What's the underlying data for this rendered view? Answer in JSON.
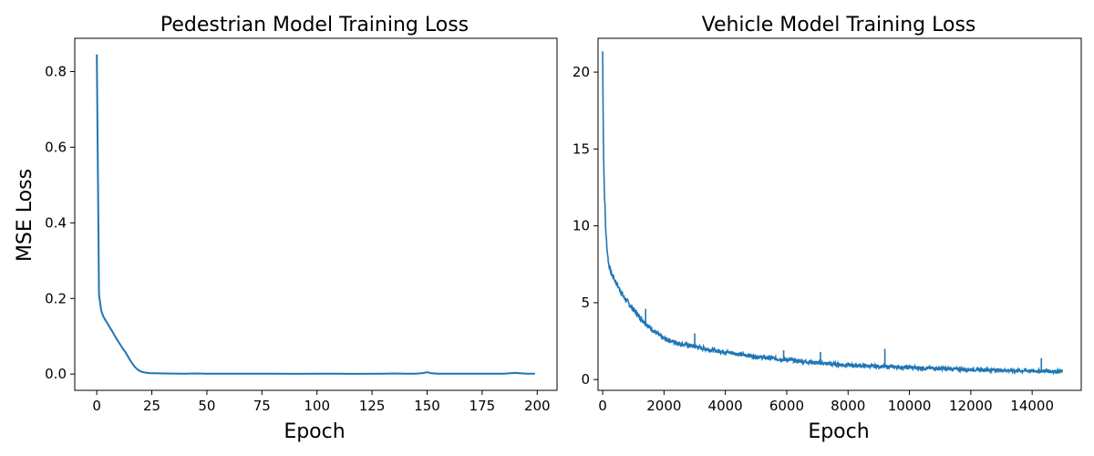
{
  "chart_data": [
    {
      "type": "line",
      "title": "Pedestrian Model Training Loss",
      "xlabel": "Epoch",
      "ylabel": "MSE Loss",
      "xlim": [
        -10,
        209
      ],
      "ylim": [
        -0.043,
        0.888
      ],
      "xticks": [
        0,
        25,
        50,
        75,
        100,
        125,
        150,
        175,
        200
      ],
      "xtick_labels": [
        "0",
        "25",
        "50",
        "75",
        "100",
        "125",
        "150",
        "175",
        "200"
      ],
      "yticks": [
        0.0,
        0.2,
        0.4,
        0.6,
        0.8
      ],
      "ytick_labels": [
        "0.0",
        "0.2",
        "0.4",
        "0.6",
        "0.8"
      ],
      "grid": false,
      "series": [
        {
          "color": "#1f77b4",
          "x": [
            0,
            1,
            2,
            3,
            4,
            5,
            6,
            7,
            8,
            9,
            10,
            11,
            12,
            13,
            14,
            15,
            16,
            17,
            18,
            19,
            20,
            21,
            22,
            23,
            24,
            25,
            27,
            30,
            35,
            40,
            45,
            50,
            60,
            70,
            80,
            90,
            100,
            110,
            120,
            130,
            135,
            140,
            145,
            148,
            150,
            152,
            155,
            160,
            170,
            180,
            185,
            190,
            195,
            199
          ],
          "y": [
            0.845,
            0.21,
            0.168,
            0.152,
            0.142,
            0.133,
            0.123,
            0.113,
            0.103,
            0.093,
            0.084,
            0.075,
            0.066,
            0.058,
            0.048,
            0.038,
            0.029,
            0.021,
            0.015,
            0.01,
            0.007,
            0.005,
            0.004,
            0.003,
            0.0025,
            0.002,
            0.002,
            0.0015,
            0.0013,
            0.0012,
            0.0015,
            0.001,
            0.001,
            0.0008,
            0.001,
            0.0007,
            0.001,
            0.0008,
            0.0007,
            0.0008,
            0.0015,
            0.0008,
            0.0009,
            0.0025,
            0.005,
            0.002,
            0.001,
            0.0012,
            0.0009,
            0.0012,
            0.0008,
            0.003,
            0.001,
            0.001
          ]
        }
      ]
    },
    {
      "type": "line",
      "title": "Vehicle Model Training Loss",
      "xlabel": "Epoch",
      "ylabel": "",
      "xlim": [
        -150,
        15600
      ],
      "ylim": [
        -0.7,
        22.2
      ],
      "xticks": [
        0,
        2000,
        4000,
        6000,
        8000,
        10000,
        12000,
        14000
      ],
      "xtick_labels": [
        "0",
        "2000",
        "4000",
        "6000",
        "8000",
        "10000",
        "12000",
        "14000"
      ],
      "yticks": [
        0,
        5,
        10,
        15,
        20
      ],
      "ytick_labels": [
        "0",
        "5",
        "10",
        "15",
        "20"
      ],
      "grid": false,
      "series": [
        {
          "color": "#1f77b4",
          "noise_band": 0.6,
          "x": [
            0,
            20,
            50,
            80,
            100,
            150,
            200,
            300,
            400,
            500,
            700,
            1000,
            1300,
            1500,
            1800,
            2000,
            2500,
            3000,
            3500,
            4000,
            4500,
            5000,
            5500,
            6000,
            7000,
            8000,
            9000,
            10000,
            11000,
            12000,
            13000,
            14000,
            15000
          ],
          "y": [
            21.3,
            16,
            12.5,
            11,
            9.6,
            8.3,
            7.4,
            6.8,
            6.4,
            6.0,
            5.3,
            4.5,
            3.8,
            3.4,
            2.9,
            2.6,
            2.3,
            2.1,
            1.9,
            1.75,
            1.6,
            1.45,
            1.35,
            1.25,
            1.05,
            0.9,
            0.82,
            0.75,
            0.68,
            0.62,
            0.57,
            0.53,
            0.5
          ]
        }
      ],
      "spikes": [
        {
          "x": 1400,
          "y": 4.6
        },
        {
          "x": 3000,
          "y": 3.0
        },
        {
          "x": 5900,
          "y": 1.9
        },
        {
          "x": 7100,
          "y": 1.8
        },
        {
          "x": 9200,
          "y": 2.0
        },
        {
          "x": 14300,
          "y": 1.4
        }
      ]
    }
  ]
}
